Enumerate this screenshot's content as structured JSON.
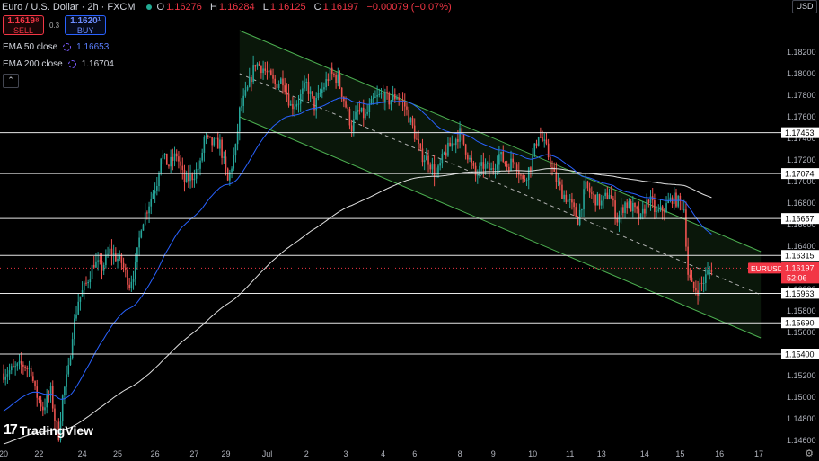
{
  "header": {
    "symbol": "Euro / U.S. Dollar · 2h · FXCM",
    "open_label": "O",
    "open": "1.16276",
    "high_label": "H",
    "high": "1.16284",
    "low_label": "L",
    "low": "1.16125",
    "close_label": "C",
    "close": "1.16197",
    "change": "−0.00079 (−0.07%)"
  },
  "trade": {
    "sell_price": "1.1619⁸",
    "sell_label": "SELL",
    "spread": "0.3",
    "buy_price": "1.1620¹",
    "buy_label": "BUY"
  },
  "indicators": [
    {
      "label": "EMA 50 close",
      "value": "1.16653"
    },
    {
      "label": "EMA 200 close",
      "value": "1.16704"
    }
  ],
  "collapse_glyph": "⌃",
  "currency_button": "USD",
  "logo": {
    "mark": "17",
    "text": "TradingView"
  },
  "settings_icon": "gear-icon",
  "colors": {
    "bull": "#26a69a",
    "bear": "#ef5350",
    "ema50": "#2962ff",
    "ema200": "#e0e0e0",
    "channel": "#4caf50",
    "current": "#f23645"
  },
  "chart_data": {
    "type": "candlestick",
    "instrument": "EURUSD",
    "ylim": [
      1.146,
      1.184
    ],
    "y_ticks": [
      "1.18200",
      "1.18000",
      "1.17800",
      "1.17600",
      "1.17400",
      "1.17200",
      "1.17000",
      "1.16800",
      "1.16600",
      "1.16400",
      "1.16200",
      "1.16000",
      "1.15800",
      "1.15600",
      "1.15400",
      "1.15200",
      "1.15000",
      "1.14800",
      "1.14600"
    ],
    "x_ticks": [
      {
        "label": "20",
        "i": 0
      },
      {
        "label": "22",
        "i": 18
      },
      {
        "label": "24",
        "i": 40
      },
      {
        "label": "25",
        "i": 58
      },
      {
        "label": "26",
        "i": 77
      },
      {
        "label": "27",
        "i": 97
      },
      {
        "label": "29",
        "i": 113
      },
      {
        "label": "Jul",
        "i": 134
      },
      {
        "label": "2",
        "i": 154
      },
      {
        "label": "3",
        "i": 174
      },
      {
        "label": "4",
        "i": 193
      },
      {
        "label": "6",
        "i": 209
      },
      {
        "label": "8",
        "i": 232
      },
      {
        "label": "9",
        "i": 249
      },
      {
        "label": "10",
        "i": 269
      },
      {
        "label": "11",
        "i": 288
      },
      {
        "label": "13",
        "i": 304
      },
      {
        "label": "14",
        "i": 326
      },
      {
        "label": "15",
        "i": 344
      },
      {
        "label": "16",
        "i": 364
      },
      {
        "label": "17",
        "i": 384
      }
    ],
    "horizontal_levels": [
      1.17453,
      1.17074,
      1.16657,
      1.16315,
      1.15963,
      1.1569,
      1.154
    ],
    "level_labels": [
      "1.17453",
      "1.17074",
      "1.16657",
      "1.16315",
      "1.15963",
      "1.15690",
      "1.15400"
    ],
    "current_price": {
      "symbol": "EURUSD",
      "value": 1.16197,
      "label": "1.16197",
      "countdown": "52:06"
    },
    "channel": {
      "upper": [
        [
          120,
          1.184
        ],
        [
          385,
          1.1635
        ]
      ],
      "lower": [
        [
          120,
          1.176
        ],
        [
          385,
          1.1555
        ]
      ],
      "mid": [
        [
          120,
          1.18
        ],
        [
          385,
          1.1595
        ]
      ]
    },
    "candle_count": 360,
    "waypoints": [
      [
        0,
        1.1522
      ],
      [
        10,
        1.153
      ],
      [
        14,
        1.1525
      ],
      [
        16,
        1.1505
      ],
      [
        20,
        1.149
      ],
      [
        24,
        1.1505
      ],
      [
        26,
        1.148
      ],
      [
        28,
        1.1465
      ],
      [
        30,
        1.15
      ],
      [
        33,
        1.1525
      ],
      [
        35,
        1.156
      ],
      [
        38,
        1.159
      ],
      [
        42,
        1.1605
      ],
      [
        46,
        1.1625
      ],
      [
        50,
        1.162
      ],
      [
        54,
        1.1635
      ],
      [
        60,
        1.1625
      ],
      [
        64,
        1.1605
      ],
      [
        67,
        1.162
      ],
      [
        70,
        1.166
      ],
      [
        74,
        1.168
      ],
      [
        78,
        1.17
      ],
      [
        80,
        1.1725
      ],
      [
        84,
        1.1715
      ],
      [
        88,
        1.1725
      ],
      [
        92,
        1.17
      ],
      [
        96,
        1.1705
      ],
      [
        100,
        1.1715
      ],
      [
        102,
        1.174
      ],
      [
        106,
        1.1735
      ],
      [
        110,
        1.1735
      ],
      [
        114,
        1.17
      ],
      [
        118,
        1.173
      ],
      [
        120,
        1.1765
      ],
      [
        124,
        1.1785
      ],
      [
        128,
        1.181
      ],
      [
        132,
        1.1805
      ],
      [
        138,
        1.179
      ],
      [
        142,
        1.1795
      ],
      [
        146,
        1.177
      ],
      [
        150,
        1.1775
      ],
      [
        154,
        1.179
      ],
      [
        158,
        1.177
      ],
      [
        162,
        1.1785
      ],
      [
        166,
        1.18
      ],
      [
        170,
        1.1795
      ],
      [
        174,
        1.177
      ],
      [
        177,
        1.175
      ],
      [
        180,
        1.1765
      ],
      [
        184,
        1.176
      ],
      [
        188,
        1.1775
      ],
      [
        192,
        1.178
      ],
      [
        196,
        1.1775
      ],
      [
        200,
        1.178
      ],
      [
        204,
        1.177
      ],
      [
        208,
        1.175
      ],
      [
        212,
        1.1725
      ],
      [
        216,
        1.172
      ],
      [
        220,
        1.1705
      ],
      [
        224,
        1.1725
      ],
      [
        228,
        1.1735
      ],
      [
        232,
        1.1745
      ],
      [
        236,
        1.1725
      ],
      [
        240,
        1.1705
      ],
      [
        244,
        1.1715
      ],
      [
        248,
        1.171
      ],
      [
        252,
        1.1725
      ],
      [
        256,
        1.1715
      ],
      [
        260,
        1.172
      ],
      [
        264,
        1.17
      ],
      [
        268,
        1.1715
      ],
      [
        272,
        1.1745
      ],
      [
        276,
        1.173
      ],
      [
        280,
        1.1705
      ],
      [
        284,
        1.169
      ],
      [
        288,
        1.168
      ],
      [
        292,
        1.1665
      ],
      [
        296,
        1.1695
      ],
      [
        300,
        1.1685
      ],
      [
        304,
        1.168
      ],
      [
        308,
        1.169
      ],
      [
        312,
        1.1665
      ],
      [
        316,
        1.168
      ],
      [
        320,
        1.1675
      ],
      [
        324,
        1.1665
      ],
      [
        328,
        1.1685
      ],
      [
        332,
        1.167
      ],
      [
        336,
        1.1675
      ],
      [
        340,
        1.1685
      ],
      [
        344,
        1.168
      ],
      [
        346,
        1.1675
      ],
      [
        348,
        1.1615
      ],
      [
        350,
        1.1602
      ],
      [
        353,
        1.16
      ],
      [
        356,
        1.1608
      ],
      [
        358,
        1.1615
      ],
      [
        360,
        1.162
      ]
    ]
  }
}
